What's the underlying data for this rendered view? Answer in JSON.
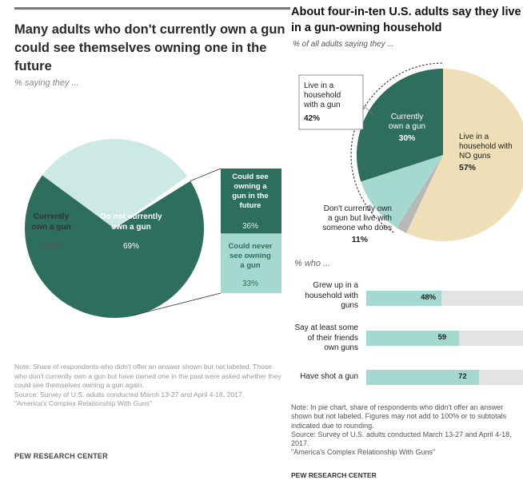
{
  "left": {
    "title": "Many adults who don't currently own a gun could see themselves owning one in the future",
    "subtitle": "% saying they ...",
    "notes": [
      "Note: Share of respondents who didn't offer an answer shown but not labeled. Those who don't currently own a gun but have owned one in the past were asked whether they could see themselves owning a gun again.",
      "Source: Survey of U.S. adults conducted March 13-27 and April 4-18, 2017.",
      "\"America's Complex Relationship With Guns\""
    ],
    "brand": "PEW RESEARCH CENTER"
  },
  "right": {
    "title": "About four-in-ten U.S. adults say they live in a gun-owning household",
    "subtitle": "% of all adults saying they ...",
    "who_label": "% who ...",
    "notes": [
      "Note: In pie chart, share of respondents who didn't offer an answer shown but not labeled. Figures may not add to 100% or to subtotals indicated due to rounding.",
      "Source: Survey of U.S. adults conducted March 13-27 and April 4-18, 2017.",
      "\"America's Complex Relationship With Guns\""
    ],
    "brand": "PEW RESEARCH CENTER"
  },
  "colors": {
    "dark_green": "#2e6e5d",
    "light_green": "#cde9e3",
    "mint": "#a5d8cf",
    "tan": "#eedfb8",
    "gray": "#b8b8b8",
    "bar_track": "#e3e3e3"
  },
  "chart_data": [
    {
      "type": "pie",
      "slices": [
        {
          "label": "Currently own a gun",
          "value": 30,
          "display": "30%"
        },
        {
          "label": "Do not currently own a gun",
          "value": 69,
          "display": "69%"
        }
      ],
      "breakdown": {
        "of": "Do not currently own a gun",
        "type": "bar",
        "segments": [
          {
            "label": "Could see owning a gun in the future",
            "value": 36,
            "display": "36%"
          },
          {
            "label": "Could never see owning a gun",
            "value": 33,
            "display": "33%"
          }
        ]
      }
    },
    {
      "type": "pie",
      "slices": [
        {
          "label": "Currently own a gun",
          "value": 30,
          "display": "30%"
        },
        {
          "label": "Live in a household with NO guns",
          "value": 57,
          "display": "57%"
        },
        {
          "label": "Don't currently own a gun but live with someone who does",
          "value": 11,
          "display": "11%"
        }
      ],
      "groups": [
        {
          "label": "Live in a household with a gun",
          "value": 42,
          "display": "42%"
        }
      ]
    },
    {
      "type": "bar",
      "orientation": "horizontal",
      "categories": [
        "Grew up in a household with guns",
        "Say at least some of their friends own guns",
        "Have shot a gun"
      ],
      "values": [
        48,
        59,
        72
      ],
      "display": [
        "48%",
        "59",
        "72"
      ],
      "xlim": [
        0,
        100
      ]
    }
  ]
}
